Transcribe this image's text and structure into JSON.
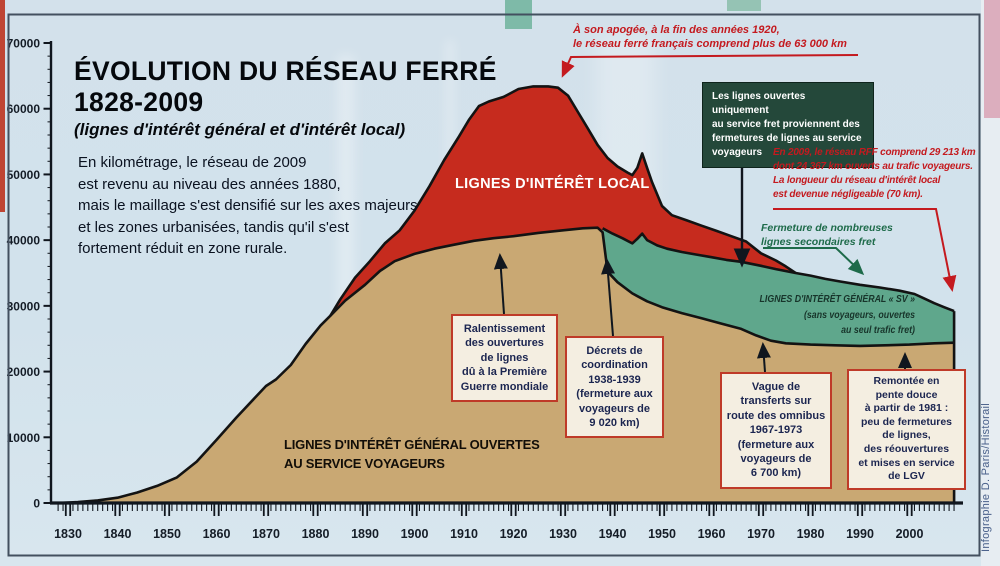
{
  "header": {
    "title_line1": "ÉVOLUTION DU RÉSEAU FERRÉ",
    "title_line2": "1828-2009",
    "subtitle": "(lignes d'intérêt général et d'intérêt local)",
    "paragraph": [
      "En kilométrage, le réseau de 2009",
      "est revenu au niveau des années 1880,",
      "mais le maillage s'est densifié sur les axes majeurs",
      "et les zones urbanisées, tandis qu'il s'est",
      "fortement réduit en zone rurale."
    ]
  },
  "annotations": {
    "apogee": {
      "lines": [
        "À son apogée, à la fin des années 1920,",
        "le réseau ferré français comprend plus de 63 000 km"
      ],
      "color": "#c41a1f"
    },
    "fret_box": {
      "lines": [
        "Les lignes ouvertes uniquement",
        "au service fret proviennent des",
        "fermetures de lignes au service",
        "voyageurs"
      ],
      "bg": "#24483a"
    },
    "rff2009": {
      "lines": [
        "En 2009, le réseau RFF comprend 29 213 km",
        "dont 24 367 km ouverts au trafic voyageurs.",
        "La longueur du réseau d'intérêt local",
        "est devenue négligeable (70 km)."
      ],
      "color": "#c41a1f"
    },
    "fermeture_fret": {
      "lines": [
        "Fermeture de nombreuses",
        "lignes secondaires fret"
      ],
      "color": "#1e6b4a"
    },
    "box_wwi": {
      "lines": [
        "Ralentissement",
        "des ouvertures",
        "de lignes",
        "dû à la Première",
        "Guerre mondiale"
      ]
    },
    "box_decrets": {
      "lines": [
        "Décrets de",
        "coordination",
        "1938-1939",
        "(fermeture aux",
        "voyageurs de",
        "9 020 km)"
      ]
    },
    "box_omnibus": {
      "lines": [
        "Vague de",
        "transferts sur",
        "route des omnibus",
        "1967-1973",
        "(fermeture aux",
        "voyageurs de",
        "6 700 km)"
      ]
    },
    "box_remontee": {
      "lines": [
        "Remontée en",
        "pente douce",
        "à partir de 1981 :",
        "peu de fermetures",
        "de lignes,",
        "des réouvertures",
        "et mises en service",
        "de LGV"
      ]
    }
  },
  "area_labels": {
    "local": "LIGNES D'INTÉRÊT LOCAL",
    "general_lines": [
      "LIGNES D'INTÉRÊT GÉNÉRAL OUVERTES",
      "AU SERVICE VOYAGEURS"
    ],
    "sv_lines": [
      "LIGNES D'INTÉRÊT GÉNÉRAL « SV »",
      "(sans voyageurs, ouvertes",
      "au seul trafic fret)"
    ]
  },
  "credit": "Infographie D. Paris/Historail",
  "chart_data": {
    "type": "area",
    "title": "ÉVOLUTION DU RÉSEAU FERRÉ 1828-2009",
    "subtitle": "(lignes d'intérêt général et d'intérêt local)",
    "unit": "km",
    "xlim": [
      1828,
      2009
    ],
    "ylim": [
      0,
      70000
    ],
    "y_ticks": [
      0,
      10000,
      20000,
      30000,
      40000,
      50000,
      60000,
      70000
    ],
    "x_ticks": [
      1830,
      1840,
      1850,
      1860,
      1870,
      1880,
      1890,
      1900,
      1910,
      1920,
      1930,
      1940,
      1950,
      1960,
      1970,
      1980,
      1990,
      2000
    ],
    "grid": false,
    "key_facts": {
      "peak_total_km_late_1920s": 63000,
      "network_2009_total_km": 29213,
      "network_2009_passenger_km": 24367,
      "interet_local_2009_km": 70,
      "closed_to_passengers_1938_1939_km": 9020,
      "closed_to_passengers_1967_1973_km": 6700
    },
    "series": [
      {
        "name": "LIGNES D'INTÉRÊT GÉNÉRAL OUVERTES AU SERVICE VOYAGEURS",
        "role": "passenger-network top boundary",
        "color": "#c9a873",
        "points": [
          [
            1828,
            0
          ],
          [
            1832,
            150
          ],
          [
            1836,
            400
          ],
          [
            1840,
            800
          ],
          [
            1844,
            1600
          ],
          [
            1848,
            2600
          ],
          [
            1852,
            3900
          ],
          [
            1856,
            6300
          ],
          [
            1860,
            9600
          ],
          [
            1864,
            13000
          ],
          [
            1868,
            16200
          ],
          [
            1870,
            17800
          ],
          [
            1872,
            18800
          ],
          [
            1875,
            21000
          ],
          [
            1878,
            24200
          ],
          [
            1881,
            27000
          ],
          [
            1883,
            28500
          ],
          [
            1886,
            30800
          ],
          [
            1890,
            33200
          ],
          [
            1893,
            35300
          ],
          [
            1896,
            36800
          ],
          [
            1900,
            37900
          ],
          [
            1904,
            38700
          ],
          [
            1908,
            39300
          ],
          [
            1912,
            39900
          ],
          [
            1916,
            40300
          ],
          [
            1920,
            40600
          ],
          [
            1925,
            41100
          ],
          [
            1930,
            41500
          ],
          [
            1934,
            41800
          ],
          [
            1937,
            41900
          ],
          [
            1938,
            41200
          ],
          [
            1939,
            35200
          ],
          [
            1941,
            33600
          ],
          [
            1944,
            31900
          ],
          [
            1947,
            30700
          ],
          [
            1950,
            29800
          ],
          [
            1954,
            28900
          ],
          [
            1958,
            28100
          ],
          [
            1962,
            27300
          ],
          [
            1966,
            26500
          ],
          [
            1969,
            25500
          ],
          [
            1972,
            24700
          ],
          [
            1975,
            24300
          ],
          [
            1980,
            24100
          ],
          [
            1985,
            24000
          ],
          [
            1990,
            23900
          ],
          [
            1995,
            24000
          ],
          [
            2000,
            24100
          ],
          [
            2005,
            24300
          ],
          [
            2009,
            24400
          ]
        ]
      },
      {
        "name": "LIGNES D'INTÉRÊT LOCAL",
        "role": "total-network top boundary (1883-1977)",
        "color": "#c62b1e",
        "points": [
          [
            1883,
            28500
          ],
          [
            1885,
            31000
          ],
          [
            1888,
            34300
          ],
          [
            1891,
            36800
          ],
          [
            1894,
            39500
          ],
          [
            1897,
            41500
          ],
          [
            1900,
            44500
          ],
          [
            1903,
            48200
          ],
          [
            1906,
            52200
          ],
          [
            1909,
            55800
          ],
          [
            1911,
            58300
          ],
          [
            1913,
            60400
          ],
          [
            1915,
            61100
          ],
          [
            1918,
            61800
          ],
          [
            1921,
            63000
          ],
          [
            1924,
            63400
          ],
          [
            1927,
            63400
          ],
          [
            1929,
            63200
          ],
          [
            1931,
            62000
          ],
          [
            1933,
            59500
          ],
          [
            1935,
            57000
          ],
          [
            1937,
            54500
          ],
          [
            1939,
            52500
          ],
          [
            1941,
            51200
          ],
          [
            1943,
            50300
          ],
          [
            1944,
            49900
          ],
          [
            1945,
            51000
          ],
          [
            1946,
            53200
          ],
          [
            1947,
            51000
          ],
          [
            1948,
            48800
          ],
          [
            1950,
            45200
          ],
          [
            1952,
            43800
          ],
          [
            1955,
            43000
          ],
          [
            1958,
            42200
          ],
          [
            1961,
            41400
          ],
          [
            1964,
            40600
          ],
          [
            1967,
            39800
          ],
          [
            1970,
            38000
          ],
          [
            1973,
            36900
          ],
          [
            1975,
            36000
          ],
          [
            1977,
            35000
          ]
        ]
      },
      {
        "name": "LIGNES D'INTÉRÊT GÉNÉRAL « SV » (sans voyageurs, ouvertes au seul trafic fret)",
        "role": "freight-only top boundary (1938-2009)",
        "color": "#5fa78c",
        "points": [
          [
            1938,
            41800
          ],
          [
            1940,
            41000
          ],
          [
            1942,
            40300
          ],
          [
            1944,
            39500
          ],
          [
            1945,
            40200
          ],
          [
            1946,
            41000
          ],
          [
            1947,
            40000
          ],
          [
            1949,
            39200
          ],
          [
            1951,
            38700
          ],
          [
            1954,
            38200
          ],
          [
            1957,
            37800
          ],
          [
            1960,
            37400
          ],
          [
            1963,
            37000
          ],
          [
            1966,
            36700
          ],
          [
            1970,
            36100
          ],
          [
            1973,
            35600
          ],
          [
            1977,
            35000
          ],
          [
            1980,
            34600
          ],
          [
            1983,
            34100
          ],
          [
            1986,
            33700
          ],
          [
            1990,
            33200
          ],
          [
            1994,
            32800
          ],
          [
            1998,
            32300
          ],
          [
            2001,
            31800
          ],
          [
            2003,
            31100
          ],
          [
            2005,
            30400
          ],
          [
            2007,
            29800
          ],
          [
            2009,
            29200
          ]
        ]
      }
    ]
  }
}
